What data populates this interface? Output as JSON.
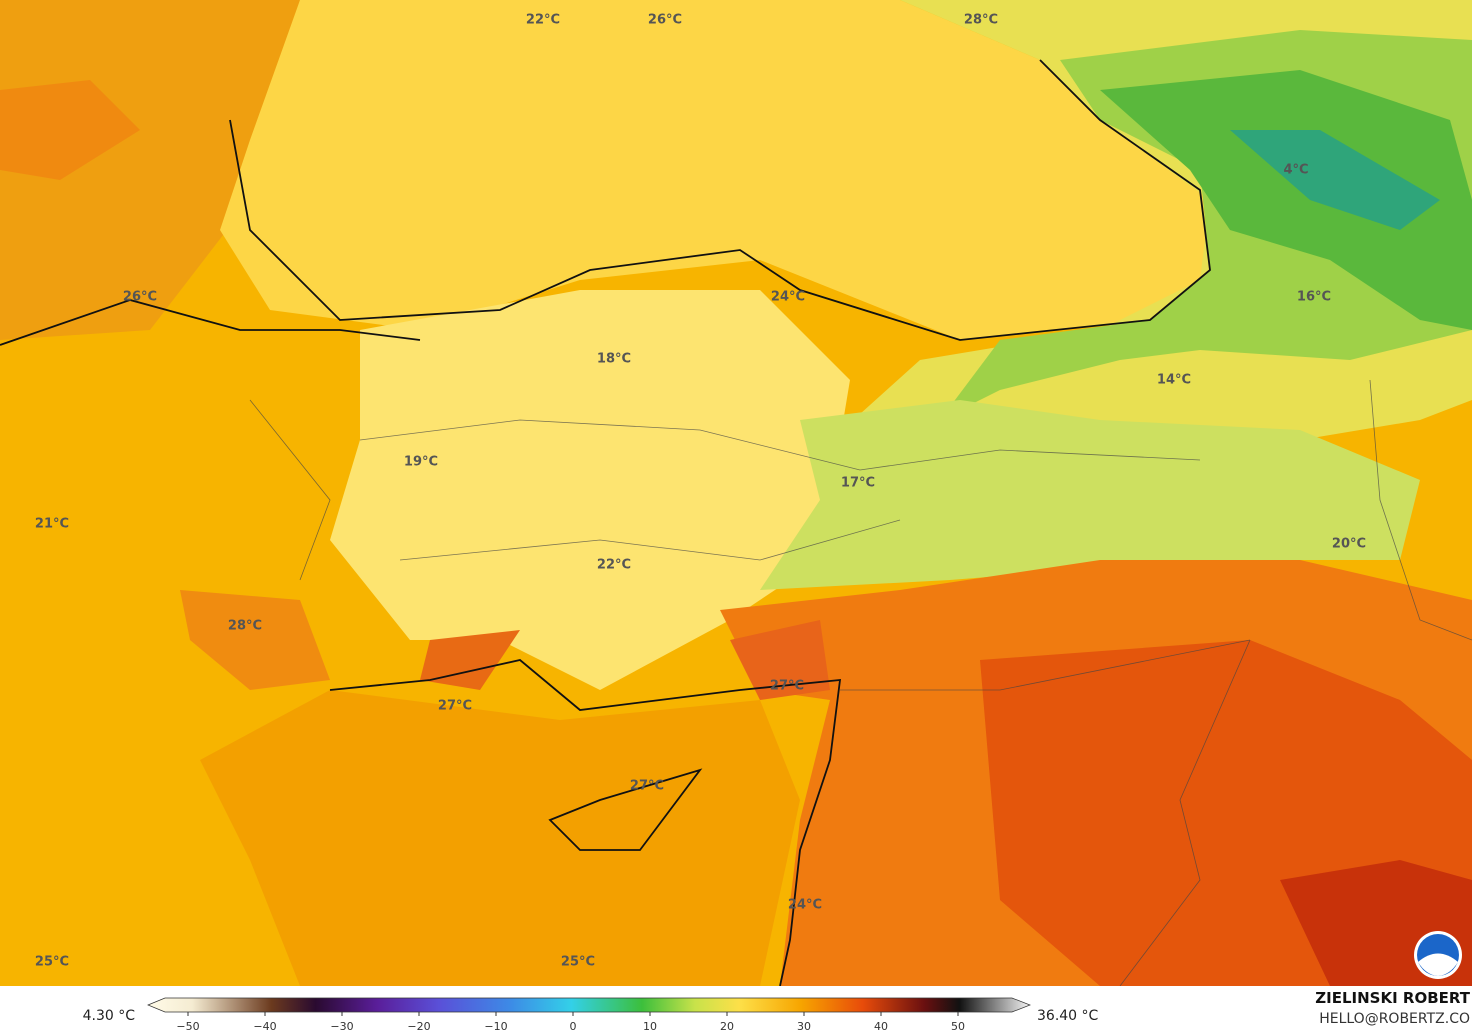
{
  "map": {
    "labels": [
      "22°C",
      "26°C",
      "28°C",
      "4°C",
      "26°C",
      "24°C",
      "16°C",
      "18°C",
      "14°C",
      "19°C",
      "17°C",
      "21°C",
      "20°C",
      "22°C",
      "28°C",
      "27°C",
      "27°C",
      "27°C",
      "24°C",
      "25°C",
      "25°C"
    ]
  },
  "colorbar": {
    "min_label": "4.30 °C",
    "max_label": "36.40 °C",
    "ticks": [
      {
        "value": -50,
        "label": "−50"
      },
      {
        "value": -40,
        "label": "−40"
      },
      {
        "value": -30,
        "label": "−30"
      },
      {
        "value": -20,
        "label": "−20"
      },
      {
        "value": -10,
        "label": "−10"
      },
      0,
      10,
      20,
      30,
      40,
      50
    ]
  },
  "credit": {
    "author": "ZIELINSKI ROBERT",
    "email": "HELLO@ROBERTZ.CO"
  }
}
